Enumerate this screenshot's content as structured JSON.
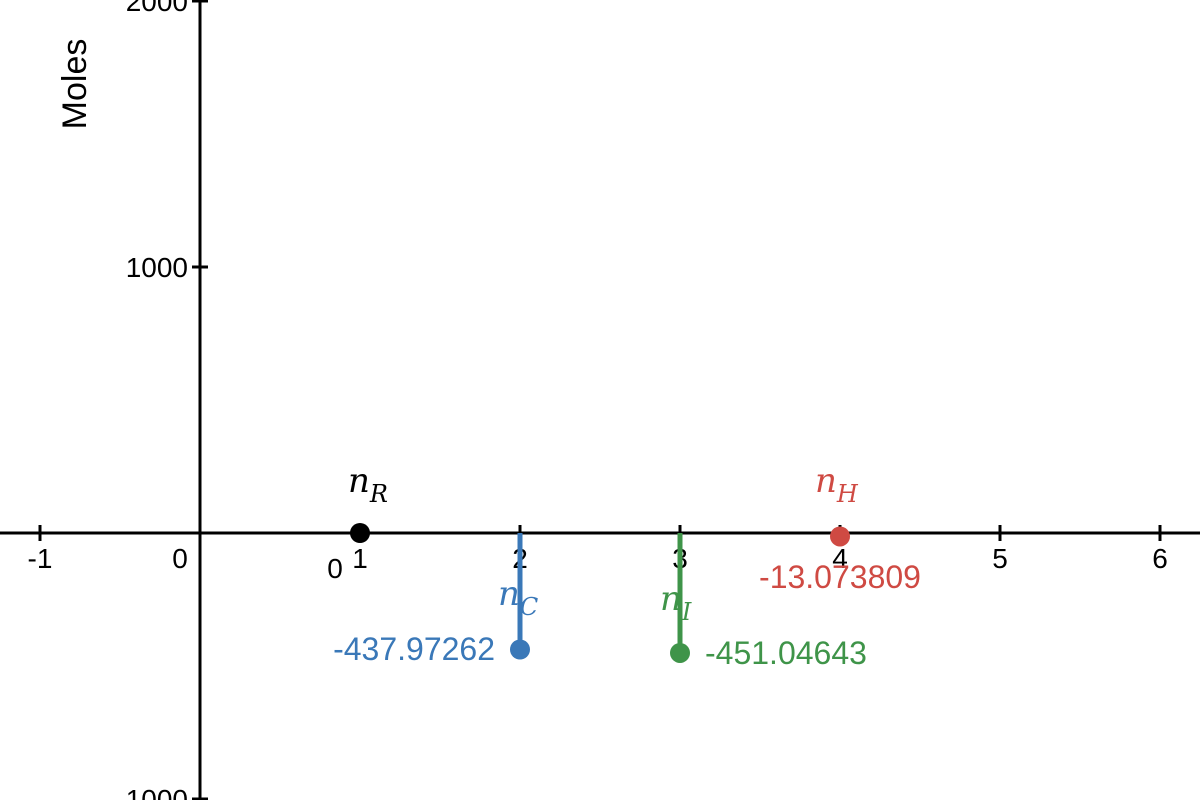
{
  "chart_data": {
    "type": "scatter",
    "title": "",
    "xlabel": "",
    "ylabel": "Moles",
    "xlim": [
      -1.25,
      6.25
    ],
    "ylim": [
      -1050,
      2010
    ],
    "grid": false,
    "x_ticks": [
      -1,
      1,
      2,
      3,
      4,
      5,
      6
    ],
    "x_tick_labels": [
      "-1",
      "1",
      "2",
      "3",
      "4",
      "5",
      "6"
    ],
    "y_ticks": [
      -1000,
      1000,
      2000
    ],
    "y_tick_labels": [
      "-1000",
      "1000",
      "2000"
    ],
    "origin_labels": [
      "0",
      "0"
    ],
    "points": [
      {
        "id": "R",
        "base": "n",
        "sub": "R",
        "x": 1,
        "y": 0,
        "color": "#000000",
        "value_label": "",
        "stem": false
      },
      {
        "id": "C",
        "base": "n",
        "sub": "C",
        "x": 2,
        "y": -437.97262,
        "color": "#3a78b8",
        "value_label": "-437.97262",
        "stem": true
      },
      {
        "id": "I",
        "base": "n",
        "sub": "I",
        "x": 3,
        "y": -451.04643,
        "color": "#3f9449",
        "value_label": "-451.04643",
        "stem": true
      },
      {
        "id": "H",
        "base": "n",
        "sub": "H",
        "x": 4,
        "y": -13.073809,
        "color": "#cf4a43",
        "value_label": "-13.073809",
        "stem": false
      }
    ]
  }
}
